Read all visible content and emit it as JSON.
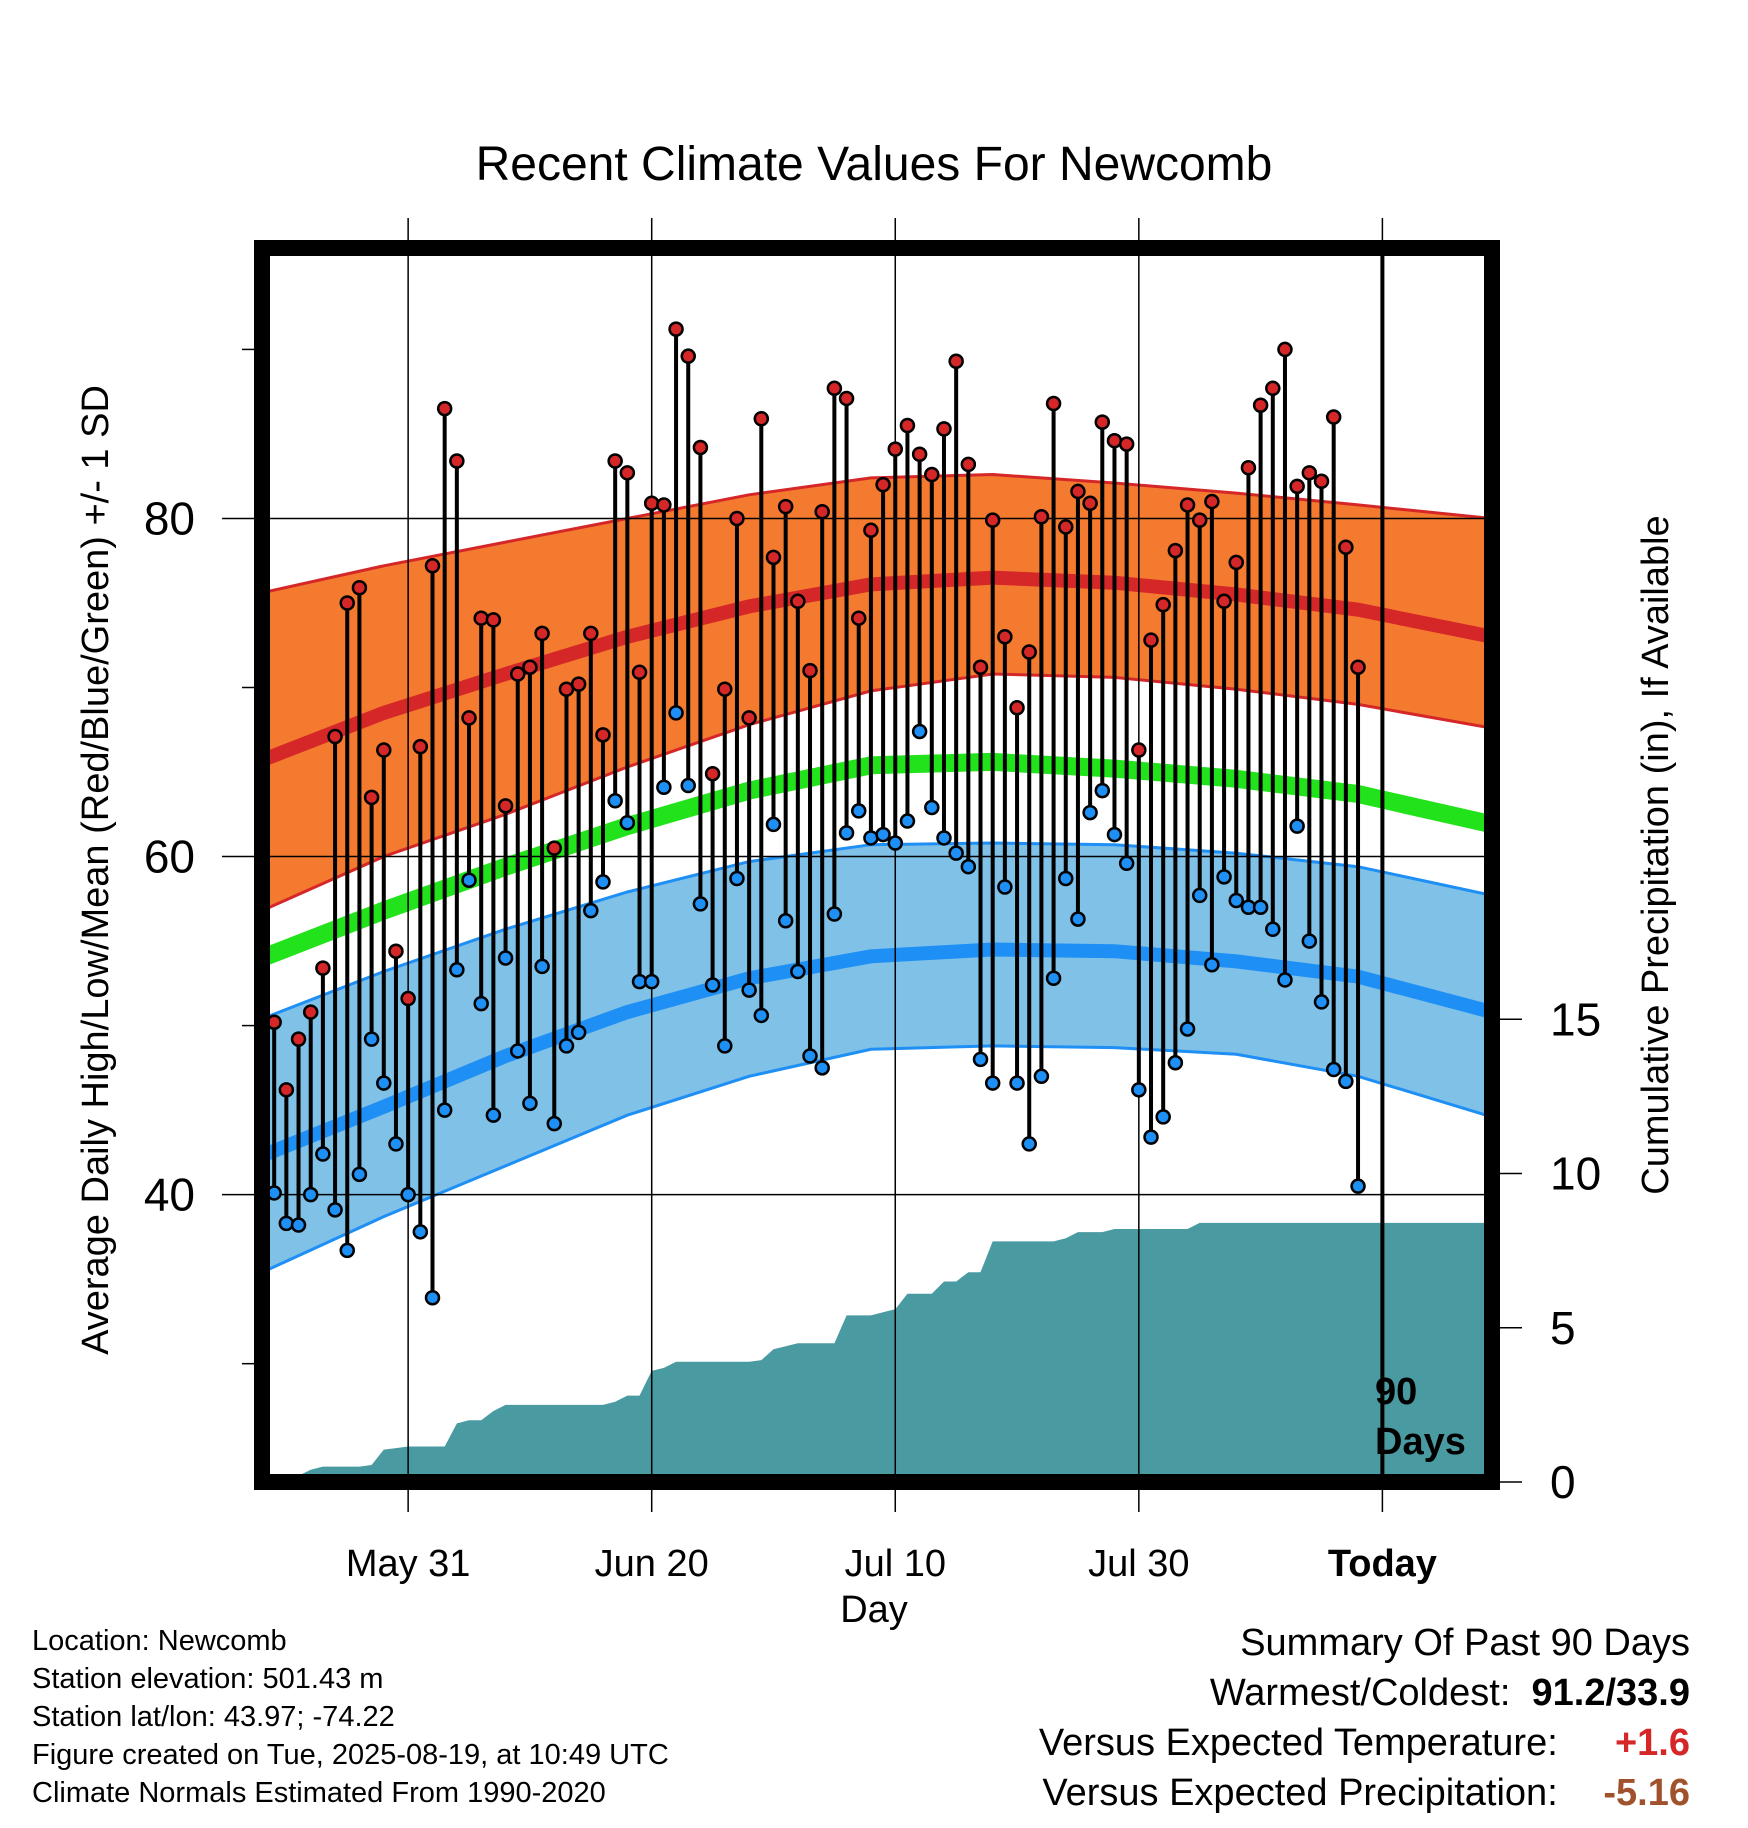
{
  "chart_data": {
    "type": "line",
    "title": "Recent Climate Values For Newcomb",
    "xlabel": "Day",
    "ylabel": "Average Daily High/Low/Mean (Red/Blue/Green) +/- 1 SD",
    "y2label": "Cumulative Precipitation (in), If Available",
    "ylim": [
      23,
      96
    ],
    "y2lim": [
      0,
      40
    ],
    "xlim": [
      "2025-05-19",
      "2025-08-28"
    ],
    "x_ticks": [
      {
        "date": "2025-05-31",
        "label": "May 31"
      },
      {
        "date": "2025-06-20",
        "label": "Jun 20"
      },
      {
        "date": "2025-07-10",
        "label": "Jul 10"
      },
      {
        "date": "2025-07-30",
        "label": "Jul 30"
      },
      {
        "date": "2025-08-19",
        "label": "Today"
      }
    ],
    "y_ticks": [
      40,
      60,
      80
    ],
    "y_minor_ticks": [
      30,
      50,
      70,
      90
    ],
    "y2_ticks": [
      0,
      5,
      10,
      15
    ],
    "grid": true,
    "today_marker": {
      "date": "2025-08-19",
      "label_line1": "90",
      "label_line2": "Days"
    },
    "colors": {
      "high_band": "#f47a30",
      "high_line": "#d62728",
      "low_band": "#80c1e8",
      "low_line": "#1e8ff5",
      "mean_line": "#22e21b",
      "precip": "#4a9aa2",
      "high_dot": "#d62728",
      "low_dot": "#1e8ff5"
    },
    "normals": {
      "dates": [
        "2025-05-19",
        "2025-05-29",
        "2025-06-08",
        "2025-06-18",
        "2025-06-28",
        "2025-07-08",
        "2025-07-18",
        "2025-07-28",
        "2025-08-07",
        "2025-08-17",
        "2025-08-28"
      ],
      "high_mean": [
        65.7,
        68.5,
        70.8,
        73.0,
        74.8,
        76.1,
        76.5,
        76.2,
        75.5,
        74.6,
        73.0
      ],
      "high_upper": [
        75.6,
        77.2,
        78.6,
        80.0,
        81.4,
        82.4,
        82.6,
        82.1,
        81.5,
        80.8,
        80.0
      ],
      "high_lower": [
        56.8,
        60.0,
        62.5,
        65.3,
        67.8,
        69.8,
        70.8,
        70.6,
        69.9,
        69.0,
        67.6
      ],
      "mean": [
        54.0,
        56.8,
        59.4,
        61.8,
        63.9,
        65.4,
        65.6,
        65.2,
        64.6,
        63.7,
        61.9
      ],
      "low_mean": [
        42.3,
        45.2,
        48.2,
        50.8,
        52.8,
        54.1,
        54.5,
        54.4,
        53.8,
        52.9,
        50.8
      ],
      "low_upper": [
        50.4,
        53.2,
        55.7,
        57.9,
        59.7,
        60.7,
        60.8,
        60.7,
        60.2,
        59.4,
        57.7
      ],
      "low_lower": [
        35.4,
        38.7,
        41.7,
        44.7,
        47.0,
        48.6,
        48.8,
        48.7,
        48.3,
        47.0,
        44.6
      ]
    },
    "series": [
      {
        "name": "High",
        "start_date": "2025-05-20",
        "values": [
          50.2,
          46.2,
          49.2,
          50.8,
          53.4,
          67.1,
          75.0,
          75.9,
          63.5,
          66.3,
          54.4,
          51.6,
          66.5,
          77.2,
          86.5,
          83.4,
          68.2,
          74.1,
          74.0,
          63.0,
          70.8,
          71.2,
          73.2,
          60.5,
          69.9,
          70.2,
          73.2,
          67.2,
          83.4,
          82.7,
          70.9,
          80.9,
          80.8,
          91.2,
          89.6,
          84.2,
          64.9,
          69.9,
          80.0,
          68.2,
          85.9,
          77.7,
          80.7,
          75.1,
          71.0,
          80.4,
          87.7,
          87.1,
          74.1,
          79.3,
          82.0,
          84.1,
          85.5,
          83.8,
          82.6,
          85.3,
          89.3,
          83.2,
          71.2,
          79.9,
          73.0,
          68.8,
          72.1,
          80.1,
          86.8,
          79.5,
          81.6,
          80.9,
          85.7,
          84.6,
          84.4,
          66.3,
          72.8,
          74.9,
          78.1,
          80.8,
          79.9,
          81.0,
          75.1,
          77.4,
          83.0,
          86.7,
          87.7,
          90.0,
          81.9,
          82.7,
          82.2,
          86.0,
          78.3,
          71.2
        ]
      },
      {
        "name": "Low",
        "start_date": "2025-05-20",
        "values": [
          40.1,
          38.3,
          38.2,
          40.0,
          42.4,
          39.1,
          36.7,
          41.2,
          49.2,
          46.6,
          43.0,
          40.0,
          37.8,
          33.9,
          45.0,
          53.3,
          58.6,
          51.3,
          44.7,
          54.0,
          48.5,
          45.4,
          53.5,
          44.2,
          48.8,
          49.6,
          56.8,
          58.5,
          63.3,
          62.0,
          52.6,
          52.6,
          64.1,
          68.5,
          64.2,
          57.2,
          52.4,
          48.8,
          58.7,
          52.1,
          50.6,
          61.9,
          56.2,
          53.2,
          48.2,
          47.5,
          56.6,
          61.4,
          62.7,
          61.1,
          61.3,
          60.8,
          62.1,
          67.4,
          62.9,
          61.1,
          60.2,
          59.4,
          48.0,
          46.6,
          58.2,
          46.6,
          43.0,
          47.0,
          52.8,
          58.7,
          56.3,
          62.6,
          63.9,
          61.3,
          59.6,
          46.2,
          43.4,
          44.6,
          47.8,
          49.8,
          57.7,
          53.6,
          58.8,
          57.4,
          57.0,
          57.0,
          55.7,
          52.7,
          61.8,
          55.0,
          51.4,
          47.4,
          46.7,
          40.5
        ]
      }
    ],
    "precipitation": {
      "name": "Cumulative Precipitation",
      "start_date": "2025-05-20",
      "values": [
        0.0,
        0.05,
        0.2,
        0.4,
        0.5,
        0.5,
        0.5,
        0.5,
        0.55,
        1.05,
        1.1,
        1.15,
        1.15,
        1.15,
        1.15,
        1.9,
        2.0,
        2.0,
        2.3,
        2.5,
        2.5,
        2.5,
        2.5,
        2.5,
        2.5,
        2.5,
        2.5,
        2.5,
        2.6,
        2.8,
        2.8,
        3.6,
        3.7,
        3.9,
        3.9,
        3.9,
        3.9,
        3.9,
        3.9,
        3.9,
        3.95,
        4.3,
        4.4,
        4.5,
        4.5,
        4.5,
        4.5,
        5.4,
        5.4,
        5.4,
        5.5,
        5.6,
        6.1,
        6.1,
        6.1,
        6.5,
        6.5,
        6.8,
        6.8,
        7.8,
        7.8,
        7.8,
        7.8,
        7.8,
        7.8,
        7.9,
        8.1,
        8.1,
        8.1,
        8.2,
        8.2,
        8.2,
        8.2,
        8.2,
        8.2,
        8.2,
        8.4,
        8.4,
        8.4,
        8.4,
        8.4,
        8.4,
        8.4,
        8.4,
        8.4,
        8.4,
        8.4,
        8.4,
        8.4,
        8.4
      ]
    }
  },
  "info": {
    "location": "Location: Newcomb",
    "elevation": "Station elevation: 501.43 m",
    "latlon": "Station lat/lon: 43.97; -74.22",
    "created": "Figure created on Tue, 2025-08-19, at 10:49 UTC",
    "normals": "Climate Normals Estimated From 1990-2020"
  },
  "summary": {
    "title": "Summary Of Past 90 Days",
    "warmest_label": "Warmest/Coldest:",
    "warmest_value": "91.2/33.9",
    "temp_label": "Versus Expected Temperature:",
    "temp_value": "+1.6",
    "temp_color": "#d62728",
    "precip_label": "Versus Expected Precipitation:",
    "precip_value": "-5.16",
    "precip_color": "#a0522d"
  }
}
